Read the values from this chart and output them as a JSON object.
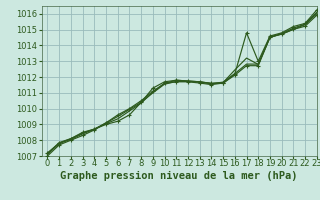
{
  "background_color": "#cce8e0",
  "grid_color": "#99bbbb",
  "line_color": "#2d5a1e",
  "xlabel": "Graphe pression niveau de la mer (hPa)",
  "ylim": [
    1007,
    1016.5
  ],
  "xlim": [
    -0.5,
    23
  ],
  "yticks": [
    1007,
    1008,
    1009,
    1010,
    1011,
    1012,
    1013,
    1014,
    1015,
    1016
  ],
  "xticks": [
    0,
    1,
    2,
    3,
    4,
    5,
    6,
    7,
    8,
    9,
    10,
    11,
    12,
    13,
    14,
    15,
    16,
    17,
    18,
    19,
    20,
    21,
    22,
    23
  ],
  "series": [
    [
      1007.2,
      1007.8,
      1008.1,
      1008.5,
      1008.7,
      1009.0,
      1009.2,
      1009.6,
      1010.4,
      1011.3,
      1011.7,
      1011.8,
      1011.75,
      1011.7,
      1011.6,
      1011.6,
      1012.2,
      1014.8,
      1013.0,
      1014.6,
      1014.8,
      1015.2,
      1015.4,
      1016.25
    ],
    [
      1007.15,
      1007.85,
      1008.1,
      1008.45,
      1008.7,
      1009.05,
      1009.35,
      1009.85,
      1010.35,
      1011.05,
      1011.6,
      1011.8,
      1011.75,
      1011.7,
      1011.6,
      1011.65,
      1012.45,
      1013.2,
      1012.8,
      1014.5,
      1014.75,
      1015.1,
      1015.35,
      1016.1
    ],
    [
      1007.1,
      1007.8,
      1008.05,
      1008.4,
      1008.7,
      1009.1,
      1009.5,
      1009.95,
      1010.4,
      1011.0,
      1011.55,
      1011.72,
      1011.72,
      1011.68,
      1011.58,
      1011.68,
      1012.22,
      1012.82,
      1012.82,
      1014.55,
      1014.72,
      1015.02,
      1015.32,
      1016.02
    ],
    [
      1007.0,
      1007.7,
      1008.0,
      1008.3,
      1008.65,
      1009.1,
      1009.6,
      1010.0,
      1010.5,
      1011.1,
      1011.6,
      1011.7,
      1011.7,
      1011.62,
      1011.52,
      1011.62,
      1012.12,
      1012.72,
      1012.72,
      1014.52,
      1014.72,
      1015.02,
      1015.22,
      1015.92
    ]
  ],
  "marker_series": [
    0,
    3
  ],
  "xlabel_fontsize": 7.5,
  "tick_fontsize": 6.0,
  "linewidth": 0.85,
  "markersize": 3.0,
  "markeredgewidth": 0.8
}
